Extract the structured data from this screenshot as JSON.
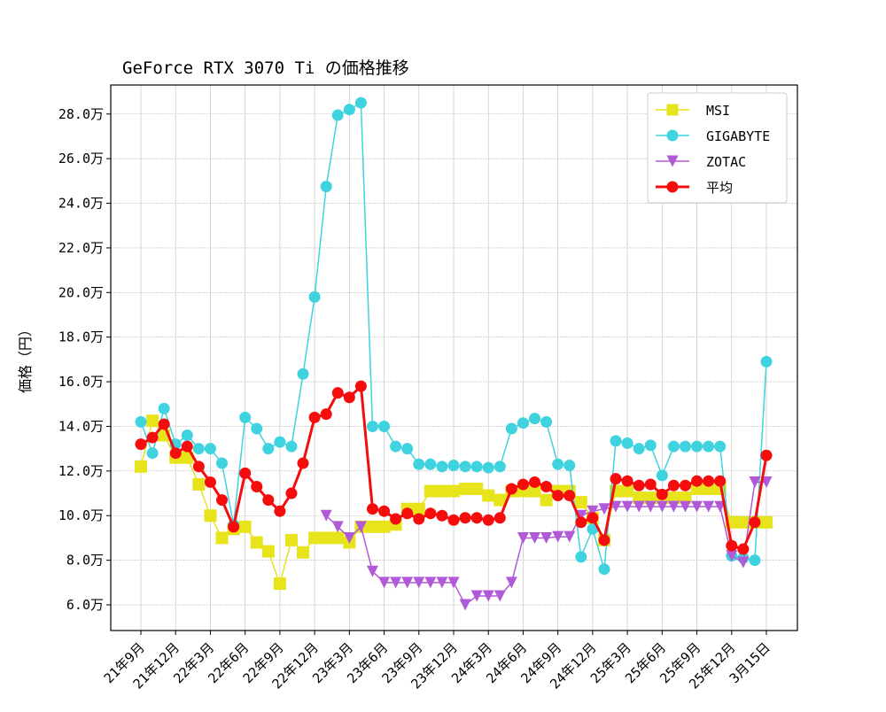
{
  "chart_data": {
    "type": "line",
    "title": "GeForce RTX 3070 Ti の価格推移",
    "xlabel": "",
    "ylabel": "価格（円）",
    "ylim": [
      4.85,
      29.3
    ],
    "y_unit_suffix": "万",
    "grid": true,
    "legend": "top-right",
    "xtick_labels": [
      "21年9月",
      "21年12月",
      "22年3月",
      "22年6月",
      "22年9月",
      "22年12月",
      "23年3月",
      "23年6月",
      "23年9月",
      "23年12月",
      "24年3月",
      "24年6月",
      "24年9月",
      "24年12月",
      "25年3月",
      "25年6月",
      "25年9月",
      "25年12月",
      "3月15日"
    ],
    "xtick_index": [
      0,
      3,
      6,
      9,
      12,
      15,
      18,
      21,
      24,
      27,
      30,
      33,
      36,
      39,
      42,
      45,
      48,
      51,
      54
    ],
    "ytick_values": [
      6,
      8,
      10,
      12,
      14,
      16,
      18,
      20,
      22,
      24,
      26,
      28
    ],
    "ytick_labels": [
      "6.0万",
      "8.0万",
      "10.0万",
      "12.0万",
      "14.0万",
      "16.0万",
      "18.0万",
      "20.0万",
      "22.0万",
      "24.0万",
      "26.0万",
      "28.0万"
    ],
    "series": [
      {
        "name": "MSI",
        "color": "#e8e41c",
        "marker": "square",
        "values": [
          12.2,
          14.25,
          13.6,
          12.6,
          12.6,
          11.4,
          10.0,
          9.0,
          9.4,
          9.5,
          8.8,
          8.4,
          6.95,
          8.9,
          8.35,
          9.0,
          9.0,
          9.0,
          8.8,
          9.5,
          9.5,
          9.5,
          9.6,
          10.3,
          10.3,
          11.1,
          11.1,
          11.1,
          11.2,
          11.2,
          10.9,
          10.7,
          11.1,
          11.1,
          11.1,
          10.7,
          11.1,
          11.1,
          10.6,
          9.9,
          8.9,
          11.1,
          11.1,
          10.8,
          10.8,
          10.8,
          10.8,
          10.8,
          11.2,
          11.2,
          11.2,
          9.7,
          9.7,
          9.7,
          9.7
        ]
      },
      {
        "name": "GIGABYTE",
        "color": "#3fd3e0",
        "marker": "circle",
        "values": [
          14.2,
          12.8,
          14.8,
          13.2,
          13.6,
          13.0,
          13.0,
          12.35,
          9.6,
          14.4,
          13.9,
          13.0,
          13.3,
          13.1,
          16.35,
          19.8,
          24.75,
          27.95,
          28.2,
          28.5,
          14.0,
          14.0,
          13.1,
          13.0,
          12.3,
          12.3,
          12.2,
          12.25,
          12.2,
          12.2,
          12.15,
          12.2,
          13.9,
          14.15,
          14.35,
          14.2,
          12.3,
          12.25,
          8.15,
          9.4,
          7.6,
          13.35,
          13.25,
          13.0,
          13.15,
          11.8,
          13.1,
          13.1,
          13.1,
          13.1,
          13.1,
          8.2,
          8.1,
          8.0,
          16.9
        ]
      },
      {
        "name": "ZOTAC",
        "color": "#b05ad8",
        "marker": "triangle-down",
        "values": [
          null,
          null,
          null,
          null,
          null,
          null,
          null,
          null,
          null,
          null,
          null,
          null,
          null,
          null,
          null,
          null,
          10.0,
          9.5,
          9.0,
          9.5,
          7.5,
          7.0,
          7.0,
          7.0,
          7.0,
          7.0,
          7.0,
          7.0,
          6.0,
          6.4,
          6.4,
          6.4,
          7.0,
          9.0,
          9.0,
          9.0,
          9.05,
          9.05,
          10.0,
          10.2,
          10.3,
          10.4,
          10.4,
          10.4,
          10.4,
          10.4,
          10.4,
          10.4,
          10.4,
          10.4,
          10.4,
          8.2,
          7.9,
          11.5,
          11.5
        ]
      },
      {
        "name": "平均",
        "color": "#f50d0d",
        "marker": "circle",
        "bold": true,
        "values": [
          13.2,
          13.5,
          14.1,
          12.8,
          13.1,
          12.2,
          11.5,
          10.7,
          9.5,
          11.9,
          11.3,
          10.7,
          10.2,
          11.0,
          12.35,
          14.4,
          14.55,
          15.5,
          15.3,
          15.8,
          10.3,
          10.2,
          9.85,
          10.1,
          9.85,
          10.1,
          10.0,
          9.8,
          9.9,
          9.9,
          9.8,
          9.9,
          11.2,
          11.4,
          11.5,
          11.3,
          10.9,
          10.9,
          9.7,
          9.9,
          8.9,
          11.65,
          11.55,
          11.35,
          11.4,
          10.95,
          11.35,
          11.35,
          11.55,
          11.55,
          11.55,
          8.65,
          8.5,
          9.7,
          12.7
        ]
      }
    ]
  }
}
